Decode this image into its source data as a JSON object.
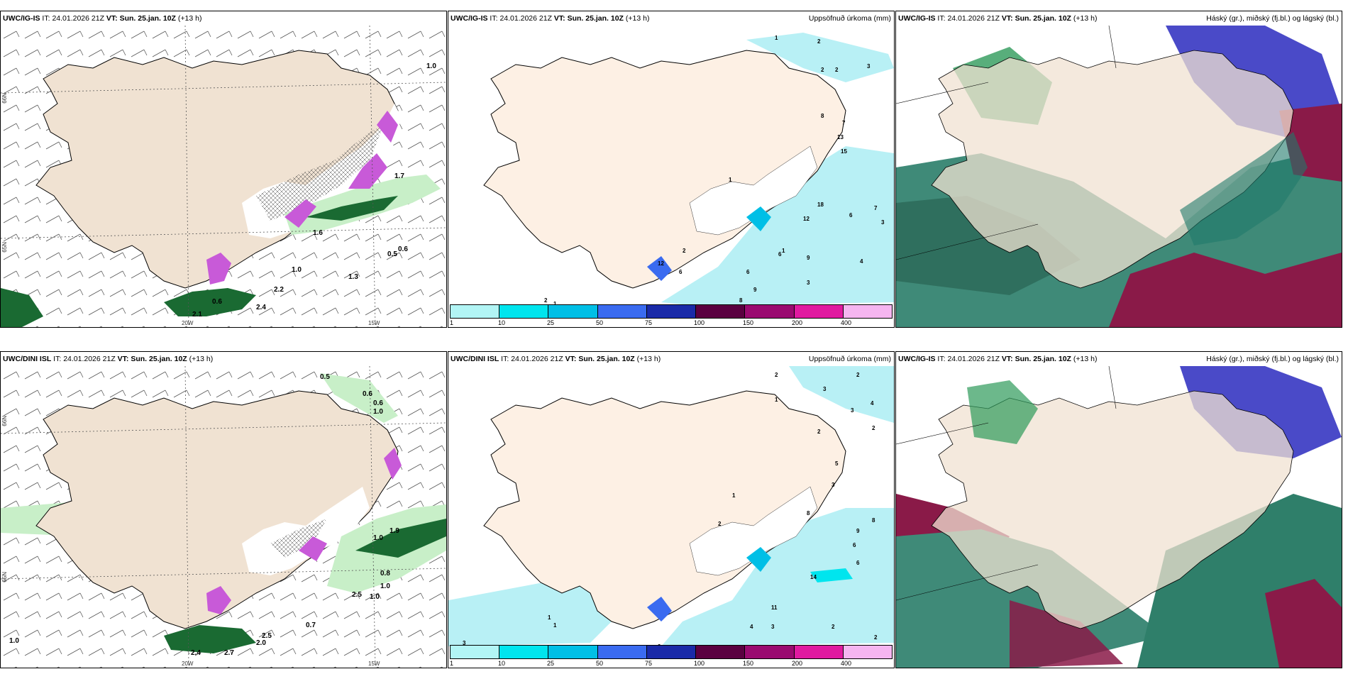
{
  "panels": [
    {
      "id": "p1",
      "model": "UWC/IG-IS",
      "it_label": "IT:",
      "it_value": "24.01.2026 21Z",
      "vt_label": "VT:",
      "vt_value": "Sun. 25.jan. 10Z",
      "lead": "(+13 h)",
      "subtitle": "",
      "lon_labels": [
        "20W",
        "15W"
      ],
      "lat_labels": [
        "66N",
        "65N"
      ],
      "values": [
        "1.0",
        "0.5",
        "0.6",
        "1.0",
        "1.3",
        "0.6",
        "2.4",
        "2.1",
        "1.7",
        "2.2",
        "1.6"
      ]
    },
    {
      "id": "p2",
      "model": "UWC/IG-IS",
      "it_label": "IT:",
      "it_value": "24.01.2026 21Z",
      "vt_label": "VT:",
      "vt_value": "Sun. 25.jan. 10Z",
      "lead": "(+13 h)",
      "subtitle": "Uppsöfnuð úrkoma (mm)",
      "values": [
        "1",
        "2",
        "3",
        "2",
        "2",
        "7",
        "8",
        "13",
        "15",
        "12",
        "18",
        "7",
        "6",
        "3",
        "4",
        "9",
        "6",
        "3",
        "6",
        "9",
        "8",
        "2",
        "1",
        "2",
        "1",
        "2",
        "6",
        "12",
        "1"
      ]
    },
    {
      "id": "p3",
      "model": "UWC/IG-IS",
      "it_label": "IT:",
      "it_value": "24.01.2026 21Z",
      "vt_label": "VT:",
      "vt_value": "Sun. 25.jan. 10Z",
      "lead": "(+13 h)",
      "subtitle": "Háský (gr.), miðský (fj.bl.) og lágský (bl.)"
    },
    {
      "id": "p4",
      "model": "UWC/DINI ISL",
      "it_label": "IT:",
      "it_value": "24.01.2026 21Z",
      "vt_label": "VT:",
      "vt_value": "Sun. 25.jan. 10Z",
      "lead": "(+13 h)",
      "subtitle": "",
      "lon_labels": [
        "20W",
        "15W"
      ],
      "lat_labels": [
        "66N",
        "65N"
      ],
      "values": [
        "0.5",
        "0.6",
        "0.6",
        "1.0",
        "1.0",
        "1.9",
        "0.8",
        "1.0",
        "2.5",
        "1.0",
        "2.7",
        "2.4",
        "2.5",
        "2.0",
        "0.7",
        "1.0"
      ]
    },
    {
      "id": "p5",
      "model": "UWC/DINI ISL",
      "it_label": "IT:",
      "it_value": "24.01.2026 21Z",
      "vt_label": "VT:",
      "vt_value": "Sun. 25.jan. 10Z",
      "lead": "(+13 h)",
      "subtitle": "Uppsöfnuð úrkoma (mm)",
      "values": [
        "2",
        "2",
        "3",
        "3",
        "4",
        "2",
        "1",
        "2",
        "5",
        "3",
        "8",
        "6",
        "9",
        "14",
        "11",
        "3",
        "4",
        "8",
        "6",
        "2",
        "2",
        "9",
        "3",
        "1",
        "1",
        "1",
        "2"
      ]
    },
    {
      "id": "p6",
      "model": "UWC/IG-IS",
      "it_label": "IT:",
      "it_value": "24.01.2026 21Z",
      "vt_label": "VT:",
      "vt_value": "Sun. 25.jan. 10Z",
      "lead": "(+13 h)",
      "subtitle": "Háský (gr.), miðský (fj.bl.) og lágský (bl.)"
    }
  ],
  "colorbar": {
    "labels": [
      "1",
      "10",
      "25",
      "50",
      "75",
      "100",
      "150",
      "200",
      "400"
    ],
    "colors": [
      "#b2f5f5",
      "#00e5ee",
      "#00bfe6",
      "#3a6bf0",
      "#1a2aa8",
      "#5a0040",
      "#9a0a70",
      "#e01aa0",
      "#f5b5f0"
    ]
  },
  "style": {
    "land": "#f0e2d2",
    "land_p2": "#fdf0e4",
    "precip_light": "#b8f0f5",
    "green_light": "#c8efc8",
    "green_dark": "#1a6a32",
    "magenta": "#c85ad8"
  }
}
